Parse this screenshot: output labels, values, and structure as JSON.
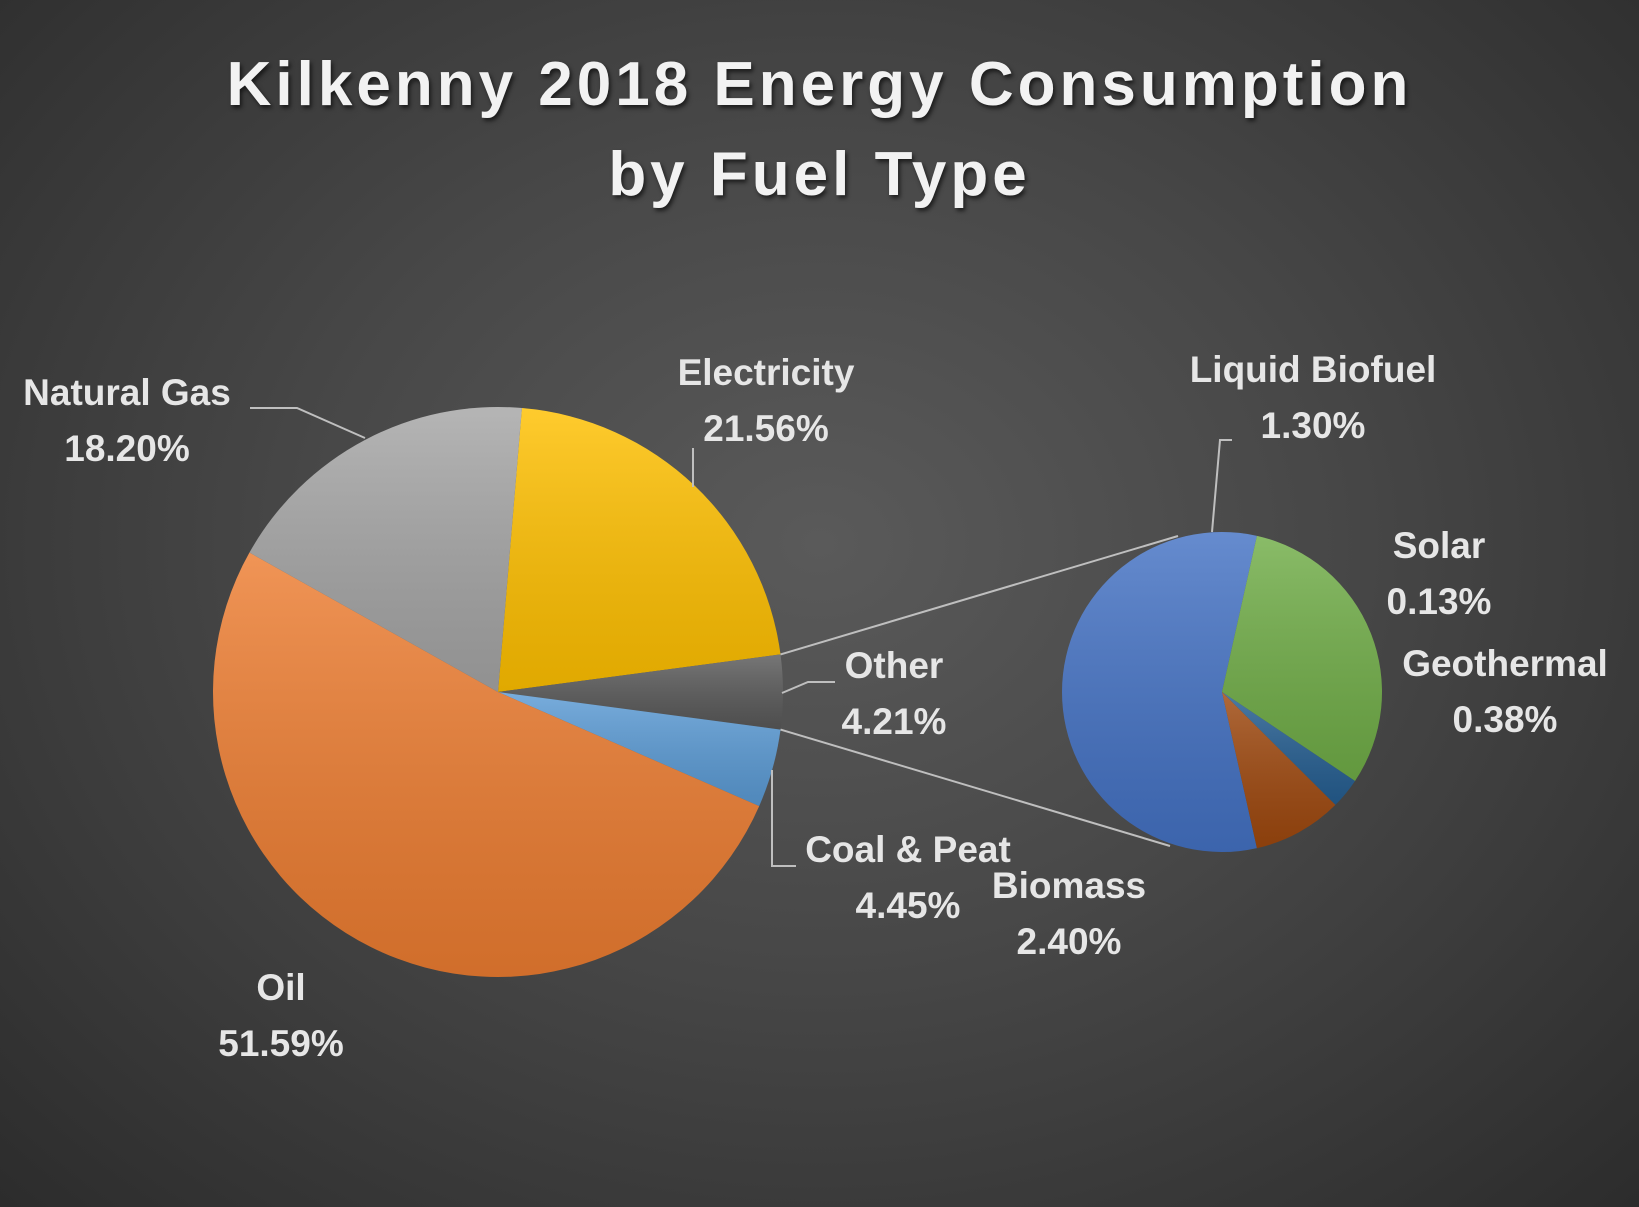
{
  "chart_data": {
    "type": "pie",
    "title_line1": "Kilkenny 2018 Energy Consumption",
    "title_line2": "by Fuel Type",
    "main_pie": {
      "slices": [
        {
          "name": "Electricity",
          "value": 21.56,
          "label": "21.56%",
          "color": "#ffc000"
        },
        {
          "name": "Other",
          "value": 4.21,
          "label": "4.21%",
          "color": "#595959"
        },
        {
          "name": "Coal & Peat",
          "value": 4.45,
          "label": "4.45%",
          "color": "#5b9bd5"
        },
        {
          "name": "Oil",
          "value": 51.59,
          "label": "51.59%",
          "color": "#ed7d31"
        },
        {
          "name": "Natural Gas",
          "value": 18.2,
          "label": "18.20%",
          "color": "#a5a5a5"
        }
      ]
    },
    "secondary_pie": {
      "breakdown_of": "Other",
      "slices": [
        {
          "name": "Biomass",
          "value": 2.4,
          "label": "2.40%",
          "color": "#4472c4"
        },
        {
          "name": "Liquid Biofuel",
          "value": 1.3,
          "label": "1.30%",
          "color": "#70ad47"
        },
        {
          "name": "Solar",
          "value": 0.13,
          "label": "0.13%",
          "color": "#255e91"
        },
        {
          "name": "Geothermal",
          "value": 0.38,
          "label": "0.38%",
          "color": "#9e480e"
        }
      ]
    }
  }
}
